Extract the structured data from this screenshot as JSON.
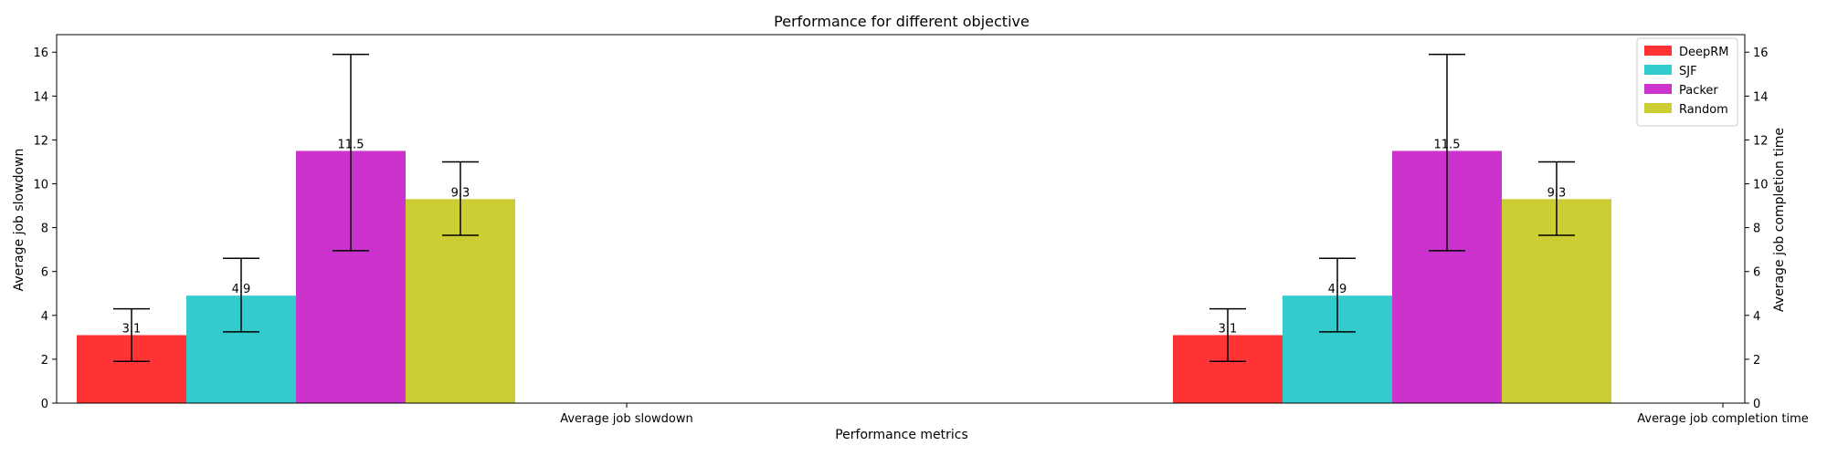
{
  "chart_data": {
    "type": "bar",
    "title": "Performance for different objective",
    "xlabel": "Performance metrics",
    "ylabel_left": "Average job slowdown",
    "ylabel_right": "Average job completion time",
    "categories": [
      "Average job slowdown",
      "Average job completion time"
    ],
    "ylim": [
      0,
      16.8
    ],
    "yticks": [
      0,
      2,
      4,
      6,
      8,
      10,
      12,
      14,
      16
    ],
    "grid": false,
    "legend_position": "top-right",
    "series": [
      {
        "name": "DeepRM",
        "color": "#ff3333",
        "values": [
          3.1,
          3.1
        ],
        "err_low": [
          1.9,
          1.9
        ],
        "err_high": [
          4.3,
          4.3
        ],
        "labels": [
          "3.1",
          "3.1"
        ]
      },
      {
        "name": "SJF",
        "color": "#33cccc",
        "values": [
          4.9,
          4.9
        ],
        "err_low": [
          3.25,
          3.25
        ],
        "err_high": [
          6.6,
          6.6
        ],
        "labels": [
          "4.9",
          "4.9"
        ]
      },
      {
        "name": "Packer",
        "color": "#cc33cc",
        "values": [
          11.5,
          11.5
        ],
        "err_low": [
          6.95,
          6.95
        ],
        "err_high": [
          15.9,
          15.9
        ],
        "labels": [
          "11.5",
          "11.5"
        ]
      },
      {
        "name": "Random",
        "color": "#cccc33",
        "values": [
          9.3,
          9.3
        ],
        "err_low": [
          7.65,
          7.65
        ],
        "err_high": [
          11.0,
          11.0
        ],
        "labels": [
          "9.3",
          "9.3"
        ]
      }
    ]
  }
}
